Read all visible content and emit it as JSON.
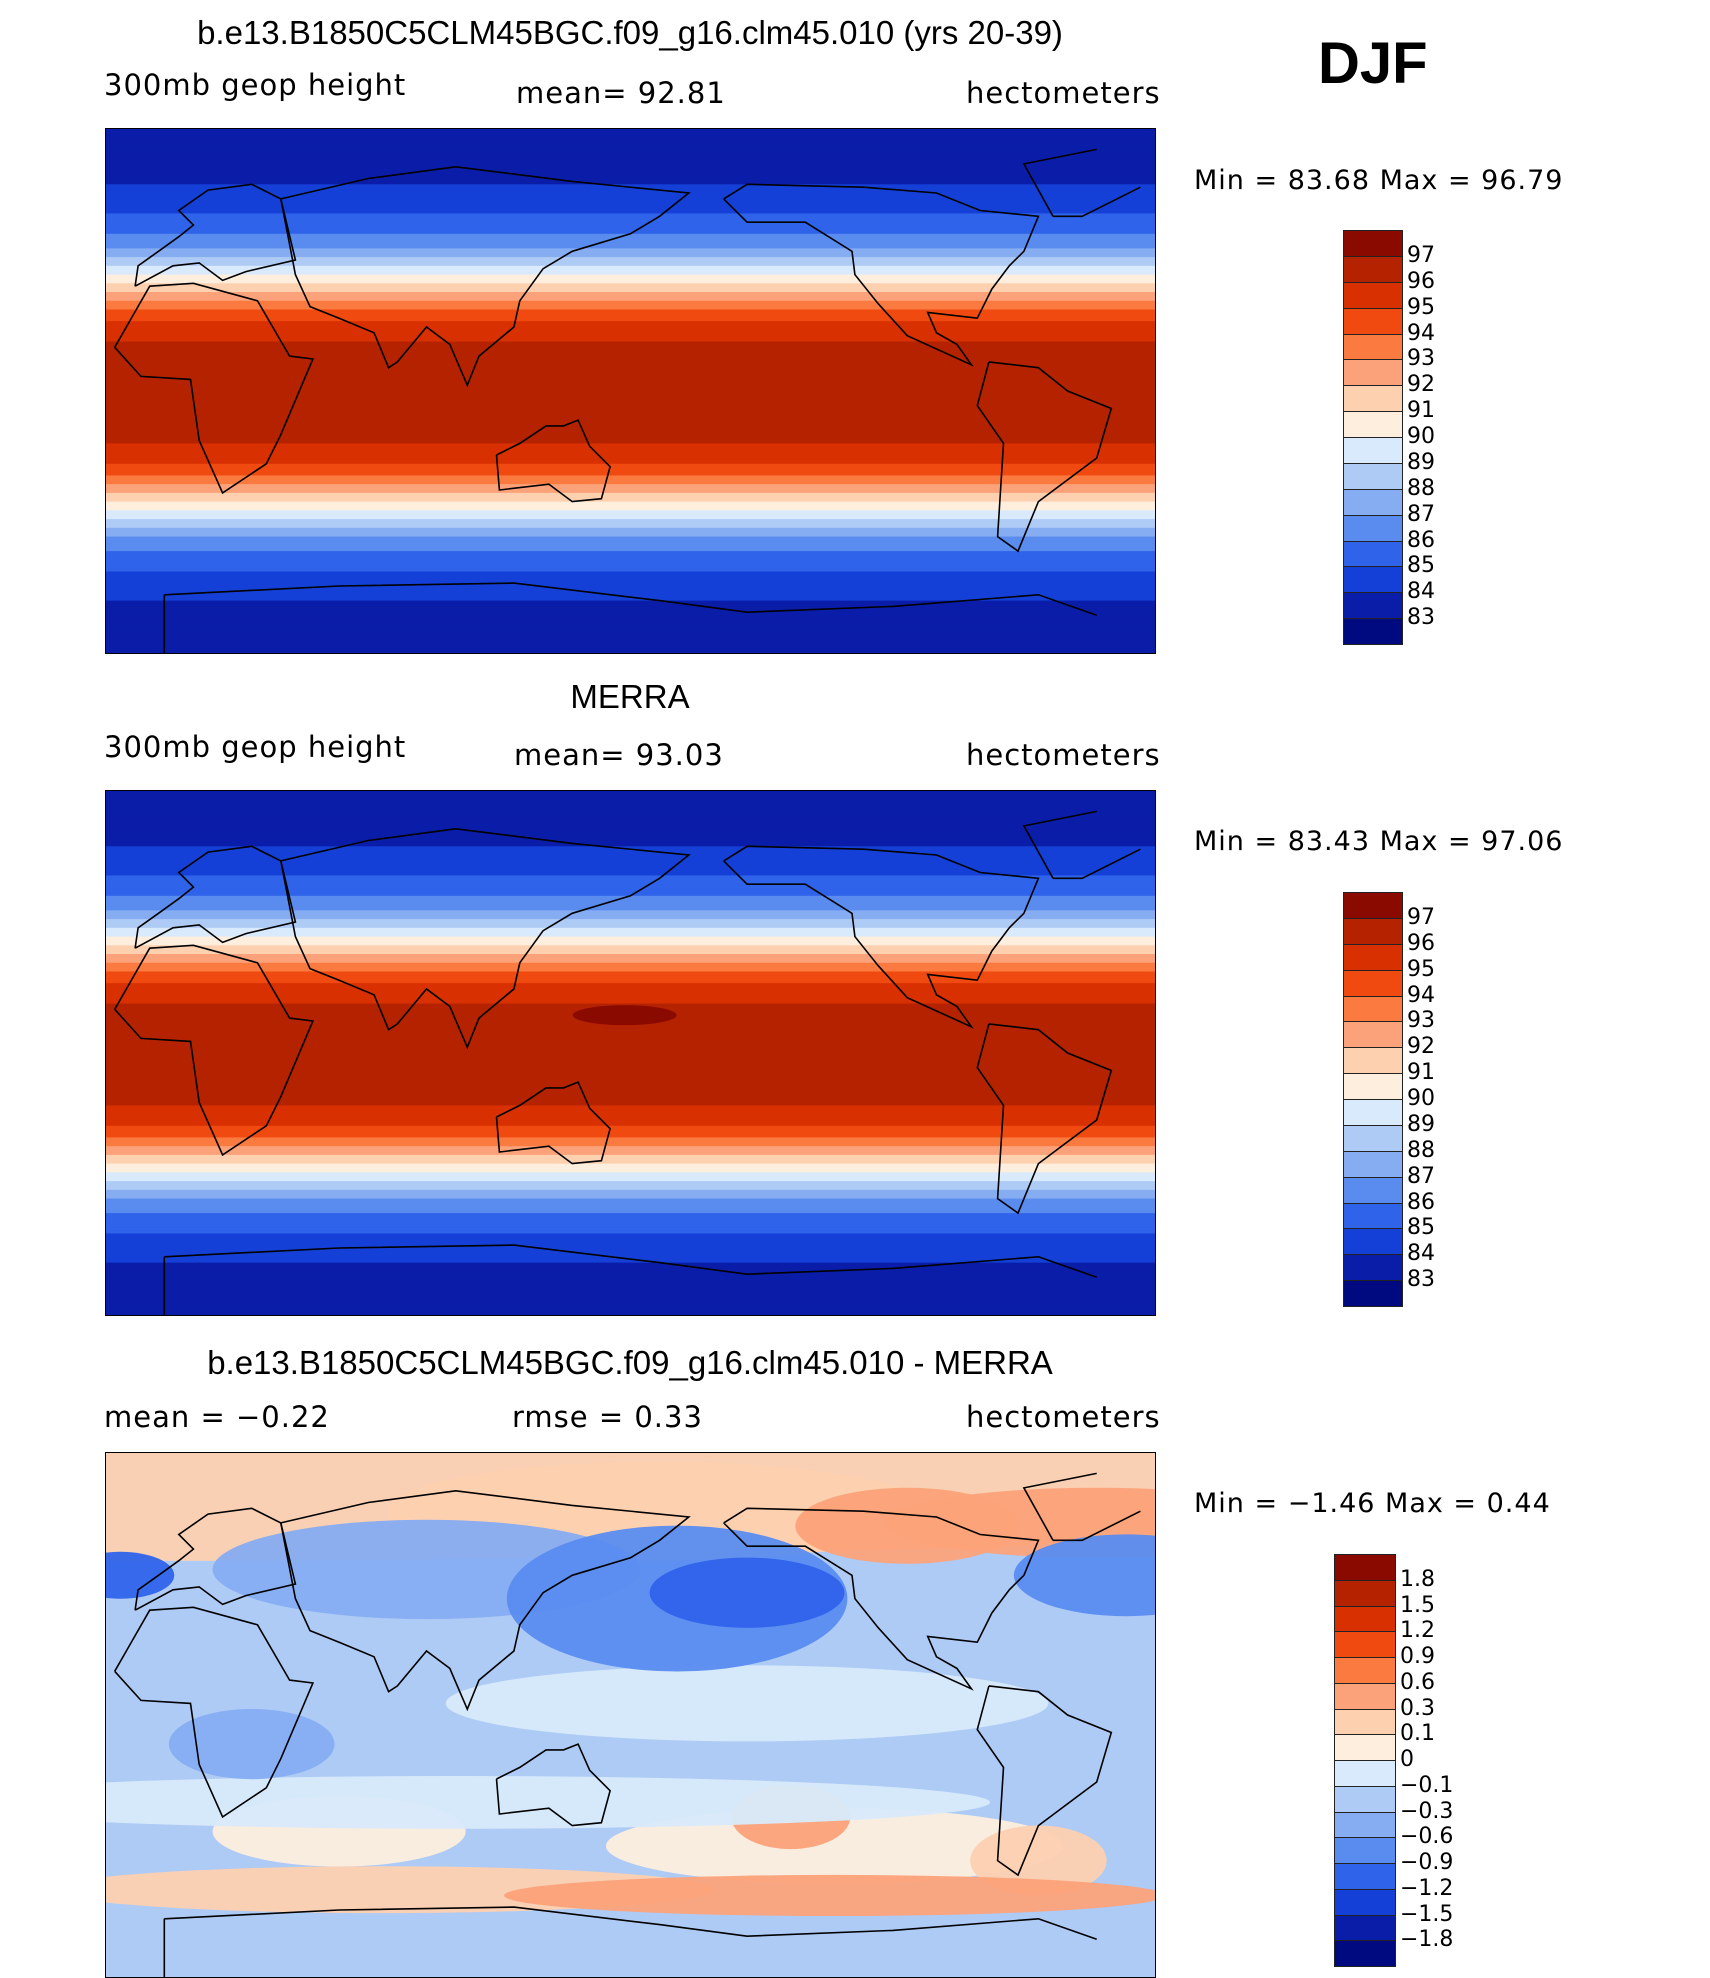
{
  "season": "DJF",
  "panels": [
    {
      "title": "b.e13.B1850C5CLM45BGC.f09_g16.clm45.010 (yrs 20-39)",
      "left_label": "300mb  geop  height",
      "center_label": "mean=   92.81",
      "right_label": "hectometers",
      "range_label": "Min  =    83.68  Max  =    96.79",
      "levels": [
        "97",
        "96",
        "95",
        "94",
        "93",
        "92",
        "91",
        "90",
        "89",
        "88",
        "87",
        "86",
        "85",
        "84",
        "83"
      ],
      "colors": [
        "#8b0a00",
        "#b52200",
        "#d83000",
        "#f04a10",
        "#fa7a40",
        "#fca27a",
        "#fdd0b0",
        "#fdeede",
        "#d8eafb",
        "#aecbf5",
        "#86acf2",
        "#5a8cf0",
        "#2f63ea",
        "#1540d8",
        "#0a1da8",
        "#000a80"
      ],
      "field": "clim",
      "warm_pool": false
    },
    {
      "title": "MERRA",
      "left_label": "300mb  geop  height",
      "center_label": "mean=   93.03",
      "right_label": "hectometers",
      "range_label": "Min  =    83.43  Max  =    97.06",
      "levels": [
        "97",
        "96",
        "95",
        "94",
        "93",
        "92",
        "91",
        "90",
        "89",
        "88",
        "87",
        "86",
        "85",
        "84",
        "83"
      ],
      "colors": [
        "#8b0a00",
        "#b52200",
        "#d83000",
        "#f04a10",
        "#fa7a40",
        "#fca27a",
        "#fdd0b0",
        "#fdeede",
        "#d8eafb",
        "#aecbf5",
        "#86acf2",
        "#5a8cf0",
        "#2f63ea",
        "#1540d8",
        "#0a1da8",
        "#000a80"
      ],
      "field": "clim",
      "warm_pool": true
    },
    {
      "title": "b.e13.B1850C5CLM45BGC.f09_g16.clm45.010 - MERRA",
      "left_label": "mean  =    −0.22",
      "center_label": "rmse  =     0.33",
      "right_label": "hectometers",
      "range_label": "Min  =    −1.46  Max  =      0.44",
      "levels": [
        "1.8",
        "1.5",
        "1.2",
        "0.9",
        "0.6",
        "0.3",
        "0.1",
        "0",
        "−0.1",
        "−0.3",
        "−0.6",
        "−0.9",
        "−1.2",
        "−1.5",
        "−1.8"
      ],
      "colors": [
        "#8b0a00",
        "#b52200",
        "#d83000",
        "#f04a10",
        "#fa7a40",
        "#fca27a",
        "#fdd0b0",
        "#fdeede",
        "#d8eafb",
        "#aecbf5",
        "#86acf2",
        "#5a8cf0",
        "#2f63ea",
        "#1540d8",
        "#0a1da8",
        "#000a80"
      ],
      "field": "diff",
      "warm_pool": false
    }
  ]
}
